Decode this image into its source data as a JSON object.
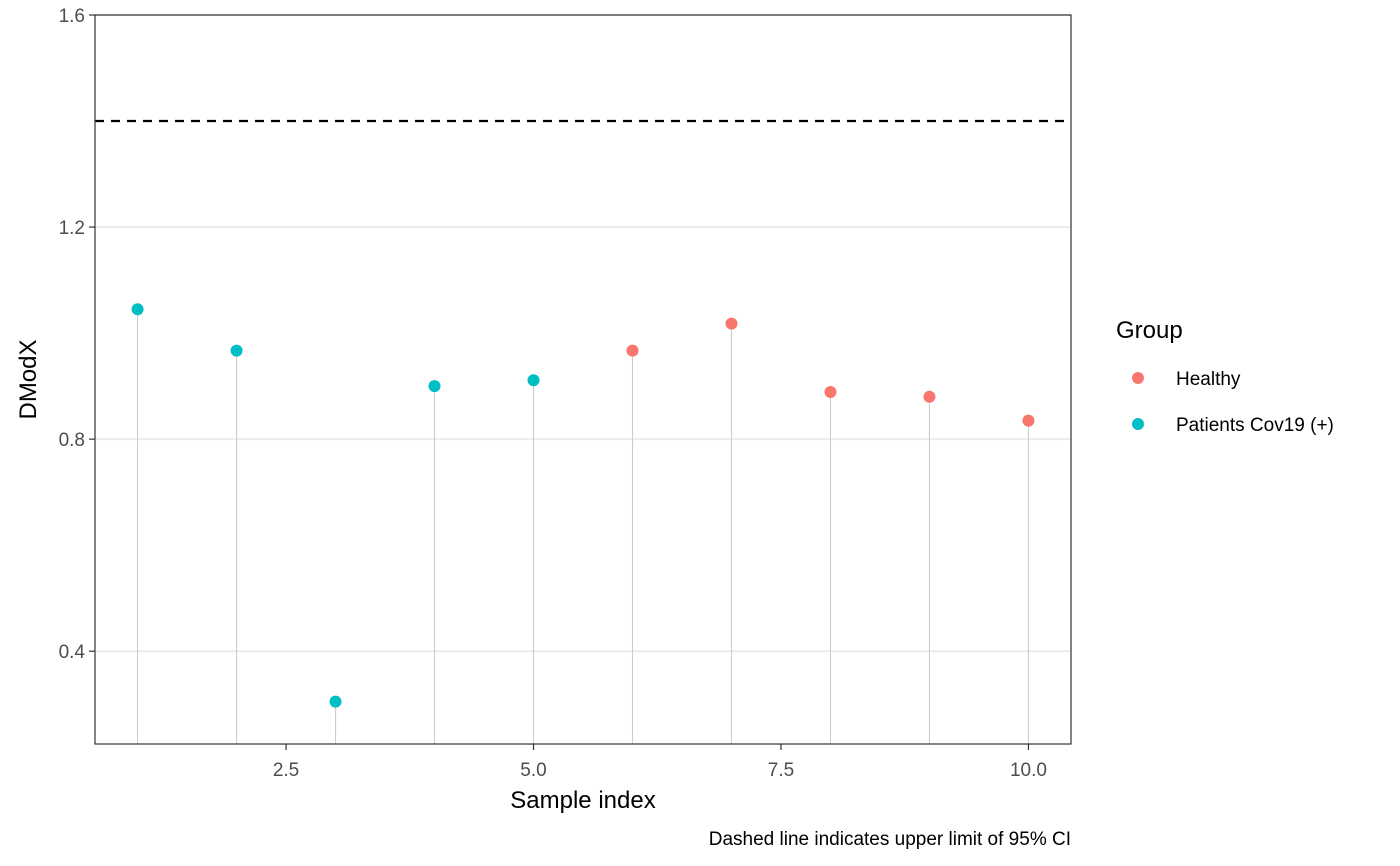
{
  "chart_data": {
    "type": "scatter",
    "xlabel": "Sample index",
    "ylabel": "DModX",
    "caption": "Dashed line indicates upper limit of 95% CI",
    "xlim": [
      0.57,
      10.43
    ],
    "ylim": [
      0.225,
      1.6
    ],
    "xticks": [
      2.5,
      5.0,
      7.5,
      10.0
    ],
    "xtick_labels": [
      "2.5",
      "5.0",
      "7.5",
      "10.0"
    ],
    "yticks": [
      0.4,
      0.8,
      1.2,
      1.6
    ],
    "ytick_labels": [
      "0.4",
      "0.8",
      "1.2",
      "1.6"
    ],
    "grid": "horizontal major",
    "threshold": 1.4,
    "legend": {
      "title": "Group",
      "placement": "right",
      "entries": [
        {
          "label": "Healthy",
          "color": "#F8766D"
        },
        {
          "label": "Patients Cov19 (+)",
          "color": "#00BFC4"
        }
      ]
    },
    "points": [
      {
        "x": 1,
        "y": 1.045,
        "group": "Patients Cov19 (+)"
      },
      {
        "x": 2,
        "y": 0.967,
        "group": "Patients Cov19 (+)"
      },
      {
        "x": 3,
        "y": 0.305,
        "group": "Patients Cov19 (+)"
      },
      {
        "x": 4,
        "y": 0.9,
        "group": "Patients Cov19 (+)"
      },
      {
        "x": 5,
        "y": 0.911,
        "group": "Patients Cov19 (+)"
      },
      {
        "x": 6,
        "y": 0.967,
        "group": "Healthy"
      },
      {
        "x": 7,
        "y": 1.018,
        "group": "Healthy"
      },
      {
        "x": 8,
        "y": 0.889,
        "group": "Healthy"
      },
      {
        "x": 9,
        "y": 0.88,
        "group": "Healthy"
      },
      {
        "x": 10,
        "y": 0.835,
        "group": "Healthy"
      }
    ]
  }
}
